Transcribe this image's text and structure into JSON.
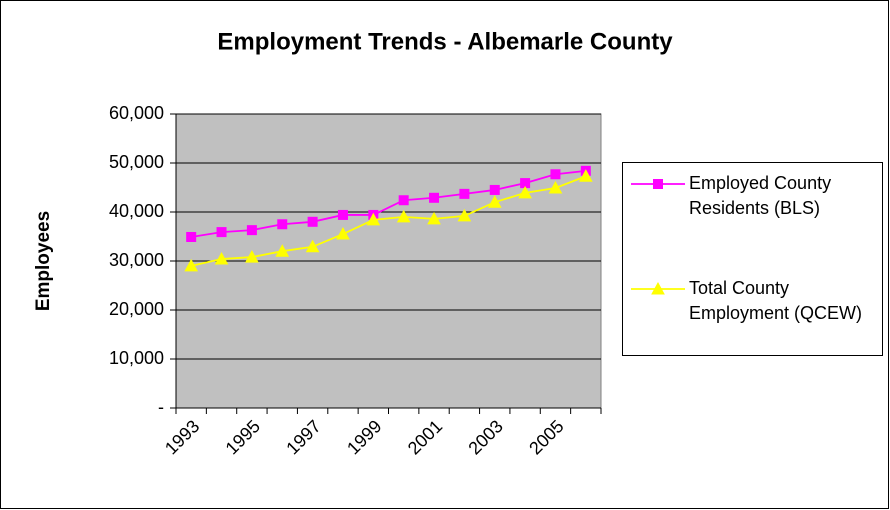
{
  "chart_data": {
    "type": "line",
    "title": "Employment Trends - Albemarle County",
    "y_label": "Employees",
    "categories": [
      "1993",
      null,
      "1995",
      null,
      "1997",
      null,
      "1999",
      null,
      "2001",
      null,
      "2003",
      null,
      "2005",
      null
    ],
    "series": [
      {
        "name": "Employed County Residents (BLS)",
        "color": "#ff00ff",
        "marker": "square",
        "values": [
          34900,
          35900,
          36300,
          37500,
          38000,
          39400,
          39400,
          42400,
          42900,
          43700,
          44500,
          45900,
          47700,
          48400
        ]
      },
      {
        "name": "Total County Employment (QCEW)",
        "color": "#ffff00",
        "marker": "triangle",
        "values": [
          29000,
          30400,
          30800,
          32000,
          32900,
          35500,
          38400,
          39000,
          38600,
          39200,
          42000,
          43900,
          44900,
          47300
        ]
      }
    ],
    "ylim": [
      0,
      60000
    ],
    "yticks": [
      {
        "value": 0,
        "label": "-"
      },
      {
        "value": 10000,
        "label": "10,000"
      },
      {
        "value": 20000,
        "label": "20,000"
      },
      {
        "value": 30000,
        "label": "30,000"
      },
      {
        "value": 40000,
        "label": "40,000"
      },
      {
        "value": 50000,
        "label": "50,000"
      },
      {
        "value": 60000,
        "label": "60,000"
      }
    ],
    "grid": true,
    "plot_background": "#c0c0c0",
    "legend": "right"
  }
}
